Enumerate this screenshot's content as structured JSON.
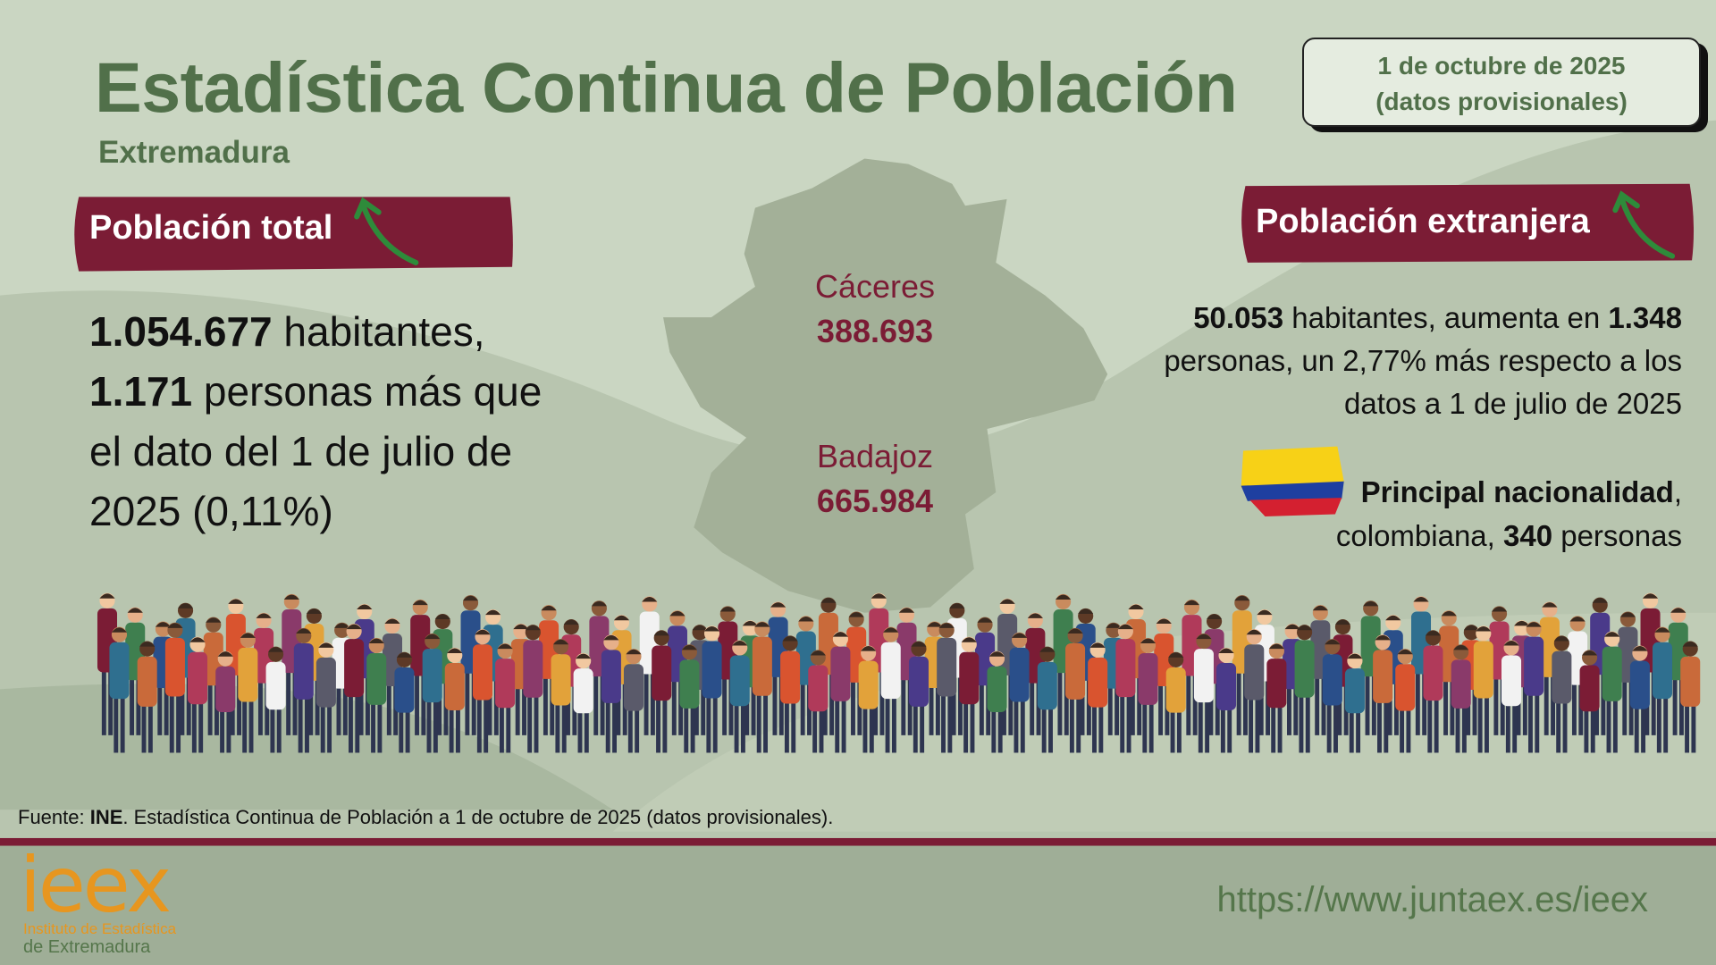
{
  "header": {
    "title": "Estadística Continua de Población",
    "region": "Extremadura",
    "date": "1 de octubre de 2025",
    "note": "(datos provisionales)"
  },
  "total": {
    "heading": "Población total",
    "text": [
      {
        "text": "1.054.677",
        "bold": true
      },
      {
        "text": " habitantes, ",
        "bold": false
      },
      {
        "text": "1.171",
        "bold": true
      },
      {
        "text": " personas más que el dato del 1 de julio de 2025 (0,11%)",
        "bold": false
      }
    ]
  },
  "provinces": [
    {
      "name": "Cáceres",
      "value": "388.693"
    },
    {
      "name": "Badajoz",
      "value": "665.984"
    }
  ],
  "foreign": {
    "heading": "Población extranjera",
    "text": [
      {
        "text": "50.053",
        "bold": true
      },
      {
        "text": " habitantes, aumenta en ",
        "bold": false
      },
      {
        "text": "1.348",
        "bold": true
      },
      {
        "text": " personas, un 2,77% más respecto a los datos a 1 de julio de 2025",
        "bold": false
      }
    ],
    "nationality": [
      {
        "text": "Principal nacionalidad",
        "bold": true
      },
      {
        "text": ", colombiana, ",
        "bold": false
      },
      {
        "text": "340",
        "bold": true
      },
      {
        "text": " personas",
        "bold": false
      }
    ]
  },
  "footer": {
    "source": [
      {
        "text": "Fuente: ",
        "bold": false
      },
      {
        "text": "INE",
        "bold": true
      },
      {
        "text": ". Estadística  Continua de Población a 1 de octubre de 2025 (datos provisionales).",
        "bold": false
      }
    ],
    "url": "https://www.juntaex.es/ieex",
    "logo": {
      "mark": "ieex",
      "line1": "Instituto de Estadística",
      "line2": "de Extremadura"
    }
  }
}
